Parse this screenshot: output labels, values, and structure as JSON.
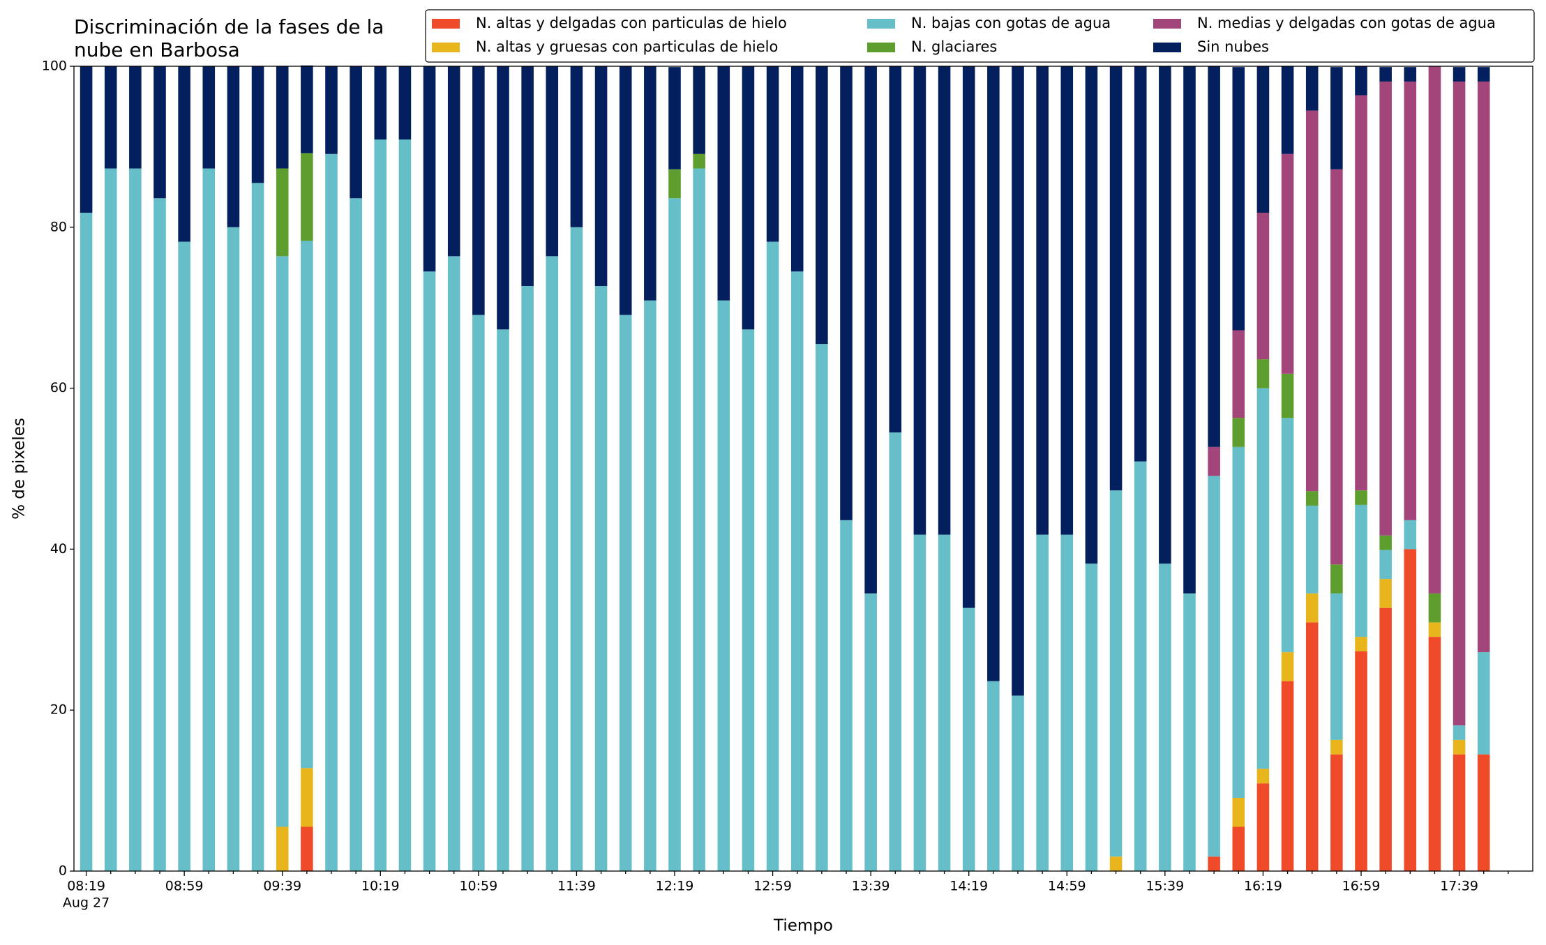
{
  "chart_data": {
    "type": "stacked_bar",
    "title": "Discriminación de la fases de la\nnube en Barbosa",
    "x_label": "Tiempo",
    "y_label": "% de pixeles",
    "date_label": "Aug 27",
    "categories": [
      "08:19",
      null,
      null,
      null,
      "08:59",
      null,
      null,
      null,
      "09:39",
      null,
      null,
      null,
      "10:19",
      null,
      null,
      null,
      "10:59",
      null,
      null,
      null,
      "11:39",
      null,
      null,
      null,
      "12:19",
      null,
      null,
      null,
      "12:59",
      null,
      null,
      null,
      "13:39",
      null,
      null,
      null,
      "14:19",
      null,
      null,
      null,
      "14:59",
      null,
      null,
      null,
      "15:39",
      null,
      null,
      null,
      "16:19",
      null,
      null,
      null,
      "16:59",
      null,
      null,
      null,
      "17:39",
      null
    ],
    "ylim": [
      0,
      100
    ],
    "yticks": [
      0,
      20,
      40,
      60,
      80,
      100
    ],
    "legend": "upper right",
    "series": [
      {
        "name": "N. altas y delgadas con particulas de hielo",
        "color": "#ef4a29",
        "values": [
          0,
          0,
          0,
          0,
          0,
          0,
          0,
          0,
          0,
          5.5,
          0,
          0,
          0,
          0,
          0,
          0,
          0,
          0,
          0,
          0,
          0,
          0,
          0,
          0,
          0,
          0,
          0,
          0,
          0,
          0,
          0,
          0,
          0,
          0,
          0,
          0,
          0,
          0,
          0,
          0,
          0,
          0,
          0,
          0,
          0,
          0,
          1.8,
          5.5,
          10.9,
          23.6,
          30.9,
          14.5,
          27.3,
          32.7,
          40.0,
          29.1,
          14.5,
          14.5
        ]
      },
      {
        "name": "N. altas y gruesas con particulas de hielo",
        "color": "#e8b61c",
        "values": [
          0,
          0,
          0,
          0,
          0,
          0,
          0,
          0,
          5.5,
          7.3,
          0,
          0,
          0,
          0,
          0,
          0,
          0,
          0,
          0,
          0,
          0,
          0,
          0,
          0,
          0,
          0,
          0,
          0,
          0,
          0,
          0,
          0,
          0,
          0,
          0,
          0,
          0,
          0,
          0,
          0,
          0,
          0,
          1.8,
          0,
          0,
          0,
          0,
          3.6,
          1.8,
          3.6,
          3.6,
          1.8,
          1.8,
          3.6,
          0,
          1.8,
          1.8,
          0
        ]
      },
      {
        "name": "N. bajas con gotas de agua",
        "color": "#66bec9",
        "values": [
          81.8,
          87.3,
          87.3,
          83.6,
          78.2,
          87.3,
          80.0,
          85.5,
          70.9,
          65.5,
          89.1,
          83.6,
          90.9,
          90.9,
          74.5,
          76.4,
          69.1,
          67.3,
          72.7,
          76.4,
          80.0,
          72.7,
          69.1,
          70.9,
          83.6,
          87.3,
          70.9,
          67.3,
          78.2,
          74.5,
          65.5,
          43.6,
          34.5,
          54.5,
          41.8,
          41.8,
          32.7,
          23.6,
          21.8,
          41.8,
          41.8,
          38.2,
          45.5,
          50.9,
          38.2,
          34.5,
          47.3,
          43.6,
          47.3,
          29.1,
          10.9,
          18.2,
          16.4,
          3.6,
          3.6,
          0,
          1.8,
          12.7
        ]
      },
      {
        "name": "N. glaciares",
        "color": "#5e9e2e",
        "values": [
          0,
          0,
          0,
          0,
          0,
          0,
          0,
          0,
          10.9,
          10.9,
          0,
          0,
          0,
          0,
          0,
          0,
          0,
          0,
          0,
          0,
          0,
          0,
          0,
          0,
          3.6,
          1.8,
          0,
          0,
          0,
          0,
          0,
          0,
          0,
          0,
          0,
          0,
          0,
          0,
          0,
          0,
          0,
          0,
          0,
          0,
          0,
          0,
          0,
          3.6,
          3.6,
          5.5,
          1.8,
          3.6,
          1.8,
          1.8,
          0,
          3.6,
          0,
          0
        ]
      },
      {
        "name": "N. medias y delgadas con gotas de agua",
        "color": "#a2457b",
        "values": [
          0,
          0,
          0,
          0,
          0,
          0,
          0,
          0,
          0,
          0,
          0,
          0,
          0,
          0,
          0,
          0,
          0,
          0,
          0,
          0,
          0,
          0,
          0,
          0,
          0,
          0,
          0,
          0,
          0,
          0,
          0,
          0,
          0,
          0,
          0,
          0,
          0,
          0,
          0,
          0,
          0,
          0,
          0,
          0,
          0,
          0,
          3.6,
          10.9,
          18.2,
          27.3,
          47.3,
          49.1,
          49.1,
          56.4,
          54.5,
          65.5,
          80.0,
          70.9
        ]
      },
      {
        "name": "Sin nubes",
        "color": "#031f5e",
        "values": [
          18.2,
          12.7,
          12.7,
          16.4,
          21.8,
          12.7,
          20.0,
          14.5,
          12.7,
          10.9,
          10.9,
          16.4,
          9.1,
          9.1,
          25.5,
          23.6,
          30.9,
          32.7,
          27.3,
          23.6,
          20.0,
          27.3,
          30.9,
          29.1,
          12.7,
          10.9,
          29.1,
          32.7,
          21.8,
          25.5,
          34.5,
          56.4,
          65.5,
          45.5,
          58.2,
          58.2,
          67.3,
          76.4,
          78.2,
          58.2,
          58.2,
          61.8,
          52.7,
          49.1,
          61.8,
          65.5,
          47.3,
          32.7,
          18.2,
          10.9,
          5.5,
          12.7,
          3.6,
          1.8,
          1.8,
          0,
          1.8,
          1.8
        ]
      }
    ]
  }
}
